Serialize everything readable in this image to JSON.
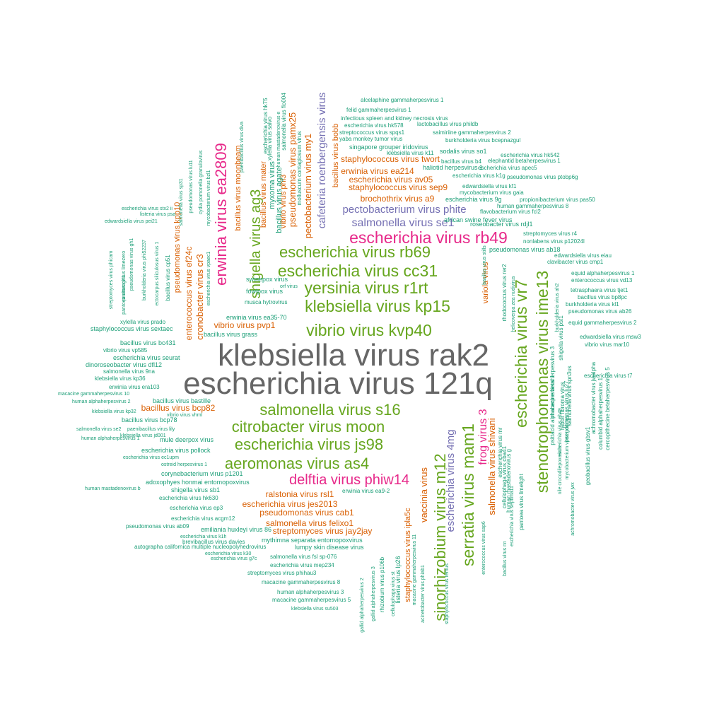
{
  "chart_data": {
    "type": "wordcloud",
    "colors": {
      "gray": "#666666",
      "magenta": "#e7298a",
      "green": "#66a61e",
      "orange": "#d95f02",
      "purple": "#7570b3",
      "teal": "#1b9e77"
    },
    "words": [
      {
        "text": "klebsiella virus rak2",
        "color": "gray"
      },
      {
        "text": "escherichia virus 121q",
        "color": "gray"
      },
      {
        "text": "escherichia virus rb49",
        "color": "magenta"
      },
      {
        "text": "erwinia virus ea2809",
        "color": "magenta"
      },
      {
        "text": "delftia virus phiw14",
        "color": "magenta"
      },
      {
        "text": "frog virus 3",
        "color": "magenta"
      },
      {
        "text": "escherichia virus rb69",
        "color": "green"
      },
      {
        "text": "escherichia virus cc31",
        "color": "green"
      },
      {
        "text": "yersinia virus r1rt",
        "color": "green"
      },
      {
        "text": "klebsiella virus kp15",
        "color": "green"
      },
      {
        "text": "vibrio virus kvp40",
        "color": "green"
      },
      {
        "text": "shigella virus ag3",
        "color": "green"
      },
      {
        "text": "salmonella virus s16",
        "color": "green"
      },
      {
        "text": "citrobacter virus moon",
        "color": "green"
      },
      {
        "text": "escherichia virus js98",
        "color": "green"
      },
      {
        "text": "aeromonas virus as4",
        "color": "green"
      },
      {
        "text": "escherichia virus vr7",
        "color": "green"
      },
      {
        "text": "stenotrophomonas virus ime13",
        "color": "green"
      },
      {
        "text": "serratia virus mam1",
        "color": "green"
      },
      {
        "text": "sinorhizobium virus m12",
        "color": "green"
      },
      {
        "text": "salmonella virus se1",
        "color": "purple"
      },
      {
        "text": "pectobacterium virus phite",
        "color": "purple"
      },
      {
        "text": "cafeteria roenbergensis virus",
        "color": "purple"
      },
      {
        "text": "escherichia virus 4mg",
        "color": "purple"
      },
      {
        "text": "brochothrix virus a9",
        "color": "orange"
      },
      {
        "text": "staphylococcus virus sep9",
        "color": "orange"
      },
      {
        "text": "escherichia virus av05",
        "color": "orange"
      },
      {
        "text": "erwinia virus ea214",
        "color": "orange"
      },
      {
        "text": "staphylococcus virus twort",
        "color": "orange"
      },
      {
        "text": "pectobacterium virus my1",
        "color": "orange"
      },
      {
        "text": "pseudomonas virus pamx25",
        "color": "orange"
      },
      {
        "text": "cronobacter virus cr3",
        "color": "orange"
      },
      {
        "text": "enterococcus virus ef24c",
        "color": "orange"
      },
      {
        "text": "vibrio virus pvp1",
        "color": "orange"
      },
      {
        "text": "bacillus virus bcp82",
        "color": "orange"
      },
      {
        "text": "ralstonia virus rsl1",
        "color": "orange"
      },
      {
        "text": "escherichia virus jes2013",
        "color": "orange"
      },
      {
        "text": "pseudomonas virus cab1",
        "color": "orange"
      },
      {
        "text": "salmonella virus felixo1",
        "color": "orange"
      },
      {
        "text": "streptomyces virus jay2jay",
        "color": "orange"
      },
      {
        "text": "vaccinia virus",
        "color": "orange"
      },
      {
        "text": "salmonella virus shivani",
        "color": "orange"
      },
      {
        "text": "variola virus",
        "color": "orange"
      },
      {
        "text": "pseudomonas virus kpp10",
        "color": "orange"
      },
      {
        "text": "bacillus virus moonbeam",
        "color": "orange"
      },
      {
        "text": "bacillus virus mater",
        "color": "orange"
      },
      {
        "text": "vibrio virus phi3",
        "color": "orange"
      },
      {
        "text": "staphylococcus virus ipla5c",
        "color": "orange"
      },
      {
        "text": "bacillus virus bobb",
        "color": "orange"
      },
      {
        "text": "alcelaphine gammaherpesvirus 1",
        "color": "teal"
      },
      {
        "text": "felid gammaherpesvirus 1",
        "color": "teal"
      },
      {
        "text": "infectious spleen and kidney necrosis virus",
        "color": "teal"
      },
      {
        "text": "escherichia virus hk578",
        "color": "teal"
      },
      {
        "text": "lactobacillus virus phildb",
        "color": "teal"
      },
      {
        "text": "streptococcus virus spqs1",
        "color": "teal"
      },
      {
        "text": "saimiriine gammaherpesvirus 2",
        "color": "teal"
      },
      {
        "text": "yaba monkey tumor virus",
        "color": "teal"
      },
      {
        "text": "burkholderia virus bcepnazgul",
        "color": "teal"
      },
      {
        "text": "singapore grouper iridovirus",
        "color": "teal"
      },
      {
        "text": "sodalis virus so1",
        "color": "teal"
      },
      {
        "text": "escherichia virus hk542",
        "color": "teal"
      },
      {
        "text": "klebsiella virus k11",
        "color": "teal"
      },
      {
        "text": "bacillus virus b4",
        "color": "teal"
      },
      {
        "text": "elephantid betaherpesvirus 1",
        "color": "teal"
      },
      {
        "text": "escherichia virus apec5",
        "color": "teal"
      },
      {
        "text": "haliotid herpesvirus 1",
        "color": "teal"
      },
      {
        "text": "escherichia virus k1g",
        "color": "teal"
      },
      {
        "text": "pseudomonas virus ptobp6g",
        "color": "teal"
      },
      {
        "text": "mycobacterium virus gaia",
        "color": "teal"
      },
      {
        "text": "edwardsiella virus kf1",
        "color": "teal"
      },
      {
        "text": "escherichia virus 9g",
        "color": "teal"
      },
      {
        "text": "propionibacterium virus pas50",
        "color": "teal"
      },
      {
        "text": "human gammaherpesvirus 8",
        "color": "teal"
      },
      {
        "text": "flavobacterium virus fcl2",
        "color": "teal"
      },
      {
        "text": "african swine fever virus",
        "color": "teal"
      },
      {
        "text": "roseobacter virus rdjl1",
        "color": "teal"
      },
      {
        "text": "streptomyces virus r4",
        "color": "teal"
      },
      {
        "text": "nonlabens virus p12024l",
        "color": "teal"
      },
      {
        "text": "pseudomonas virus ab18",
        "color": "teal"
      },
      {
        "text": "edwardsiella virus eiau",
        "color": "teal"
      },
      {
        "text": "clavibacter virus cmp1",
        "color": "teal"
      },
      {
        "text": "equid alphaherpesvirus 1",
        "color": "teal"
      },
      {
        "text": "enterococcus virus vd13",
        "color": "teal"
      },
      {
        "text": "tetrasphaera virus tjet1",
        "color": "teal"
      },
      {
        "text": "bacillus virus bp8pc",
        "color": "teal"
      },
      {
        "text": "burkholderia virus kl1",
        "color": "teal"
      },
      {
        "text": "pseudomonas virus ab26",
        "color": "teal"
      },
      {
        "text": "equid gammaherpesvirus 2",
        "color": "teal"
      },
      {
        "text": "edwardsiella virus msw3",
        "color": "teal"
      },
      {
        "text": "vibrio virus mar10",
        "color": "teal"
      },
      {
        "text": "escherichia virus t7",
        "color": "teal"
      },
      {
        "text": "escherichia virus stx2 ii",
        "color": "teal"
      },
      {
        "text": "listeria virus psa",
        "color": "teal"
      },
      {
        "text": "edwardsiella virus pei21",
        "color": "teal"
      },
      {
        "text": "pseudomonas virus gh1",
        "color": "teal"
      },
      {
        "text": "burkholderia virus phi52237",
        "color": "teal"
      },
      {
        "text": "ectocarpus siliculosus virus 1",
        "color": "teal"
      },
      {
        "text": "bacillus virus cp51",
        "color": "teal"
      },
      {
        "text": "xylella virus prado",
        "color": "teal"
      },
      {
        "text": "staphylococcus virus sextaec",
        "color": "teal"
      },
      {
        "text": "bacillus virus bc431",
        "color": "teal"
      },
      {
        "text": "vibrio virus vp585",
        "color": "teal"
      },
      {
        "text": "escherichia virus seurat",
        "color": "teal"
      },
      {
        "text": "dinoroseobacter virus dfl12",
        "color": "teal"
      },
      {
        "text": "salmonella virus 9na",
        "color": "teal"
      },
      {
        "text": "klebsiella virus kp36",
        "color": "teal"
      },
      {
        "text": "erwinia virus era103",
        "color": "teal"
      },
      {
        "text": "macacine gammaherpesvirus 10",
        "color": "teal"
      },
      {
        "text": "human alphaherpesvirus 2",
        "color": "teal"
      },
      {
        "text": "klebsiella virus kp32",
        "color": "teal"
      },
      {
        "text": "bacillus virus bastille",
        "color": "teal"
      },
      {
        "text": "bacillus virus bcp78",
        "color": "teal"
      },
      {
        "text": "salmonella virus se2",
        "color": "teal"
      },
      {
        "text": "paenibacillus virus lily",
        "color": "teal"
      },
      {
        "text": "human alphaherpesvirus 1",
        "color": "teal"
      },
      {
        "text": "mule deerpox virus",
        "color": "teal"
      },
      {
        "text": "escherichia virus pollock",
        "color": "teal"
      },
      {
        "text": "escherichia virus ec1upm",
        "color": "teal"
      },
      {
        "text": "ostreid herpesvirus 1",
        "color": "teal"
      },
      {
        "text": "corynebacterium virus p1201",
        "color": "teal"
      },
      {
        "text": "adoxophyes honmai entomopoxvirus",
        "color": "teal"
      },
      {
        "text": "human mastadenovirus b",
        "color": "teal"
      },
      {
        "text": "shigella virus sb1",
        "color": "teal"
      },
      {
        "text": "escherichia virus hk630",
        "color": "teal"
      },
      {
        "text": "escherichia virus ep3",
        "color": "teal"
      },
      {
        "text": "escherichia virus acgm12",
        "color": "teal"
      },
      {
        "text": "pseudomonas virus ab09",
        "color": "teal"
      },
      {
        "text": "emiliania huxleyi virus 86",
        "color": "teal"
      },
      {
        "text": "escherichia virus k1h",
        "color": "teal"
      },
      {
        "text": "brevibacillus virus davies",
        "color": "teal"
      },
      {
        "text": "autographa californica multiple nucleopolyhedrovirus",
        "color": "teal"
      },
      {
        "text": "escherichia virus k30",
        "color": "teal"
      },
      {
        "text": "escherichia virus g7c",
        "color": "teal"
      },
      {
        "text": "mythimna separata entomopoxvirus",
        "color": "teal"
      },
      {
        "text": "lumpy skin disease virus",
        "color": "teal"
      },
      {
        "text": "salmonella virus fsl sp-076",
        "color": "teal"
      },
      {
        "text": "escherichia virus mep234",
        "color": "teal"
      },
      {
        "text": "streptomyces virus phihau3",
        "color": "teal"
      },
      {
        "text": "macacine gammaherpesvirus 8",
        "color": "teal"
      },
      {
        "text": "human alphaherpesvirus 3",
        "color": "teal"
      },
      {
        "text": "macacine gammaherpesvirus 5",
        "color": "teal"
      },
      {
        "text": "klebsiella virus su503",
        "color": "teal"
      },
      {
        "text": "erwinia virus ea9-2",
        "color": "teal"
      },
      {
        "text": "swinepox virus",
        "color": "teal"
      },
      {
        "text": "orf virus",
        "color": "teal"
      },
      {
        "text": "fowlpox virus",
        "color": "teal"
      },
      {
        "text": "musca hytrovirus",
        "color": "teal"
      },
      {
        "text": "erwinia virus ea35-70",
        "color": "teal"
      },
      {
        "text": "bacillus virus grass",
        "color": "teal"
      },
      {
        "text": "vibrio virus vhml",
        "color": "teal"
      },
      {
        "text": "klebsiella virus jd001",
        "color": "teal"
      },
      {
        "text": "streptomyces virus phicam",
        "color": "teal"
      },
      {
        "text": "pantoea virus limezero",
        "color": "teal"
      },
      {
        "text": "pantoea virus gh1",
        "color": "teal"
      },
      {
        "text": "salmonella virus sp31",
        "color": "teal"
      },
      {
        "text": "pseudomonas virus lu11",
        "color": "teal"
      },
      {
        "text": "cydia pomonella granulovirus",
        "color": "teal"
      },
      {
        "text": "mycobacterium virus bzl1",
        "color": "teal"
      },
      {
        "text": "escherichia virus vpaec1",
        "color": "teal"
      },
      {
        "text": "helicoverpa zea nudivirus",
        "color": "teal"
      },
      {
        "text": "myxoma virus",
        "color": "teal"
      },
      {
        "text": "bacillus virus agate",
        "color": "teal"
      },
      {
        "text": "escherichia virus hk75",
        "color": "teal"
      },
      {
        "text": "xylella virus salvo",
        "color": "teal"
      },
      {
        "text": "salmonella virus flo004",
        "color": "teal"
      },
      {
        "text": "molluscum contagiosum virus",
        "color": "teal"
      },
      {
        "text": "paenibacillus virus diva",
        "color": "teal"
      },
      {
        "text": "human mastadenovirus e",
        "color": "teal"
      },
      {
        "text": "rhodococcus virus rer2",
        "color": "teal"
      },
      {
        "text": "bacillus virus stills",
        "color": "teal"
      },
      {
        "text": "burkholderia virus ah2",
        "color": "teal"
      },
      {
        "text": "shigella virus pst1",
        "color": "teal"
      },
      {
        "text": "macacine betaherpesvirus 3",
        "color": "teal"
      },
      {
        "text": "psittacid alphaherpesvirus 1",
        "color": "teal"
      },
      {
        "text": "rabbit fibroma virus",
        "color": "teal"
      },
      {
        "text": "salmonella virus spn3us",
        "color": "teal"
      },
      {
        "text": "achromobacter virus jwalpha",
        "color": "teal"
      },
      {
        "text": "columbid alphaherpesvirus 1",
        "color": "teal"
      },
      {
        "text": "cercopithecine betaherpesvirus 5",
        "color": "teal"
      },
      {
        "text": "geobacillus virus gbsv1",
        "color": "teal"
      },
      {
        "text": "pseudomonas virus lu27",
        "color": "teal"
      },
      {
        "text": "achromobacter virus jwx",
        "color": "teal"
      },
      {
        "text": "escherichia virus eb49",
        "color": "teal"
      },
      {
        "text": "mycobacterium virus godines",
        "color": "teal"
      },
      {
        "text": "nile crocodilepox virus",
        "color": "teal"
      },
      {
        "text": "human mastadenovirus g",
        "color": "teal"
      },
      {
        "text": "escherichia virus septima11",
        "color": "teal"
      },
      {
        "text": "pantoea virus limelight",
        "color": "teal"
      },
      {
        "text": "cellulophaga virus cba41",
        "color": "teal"
      },
      {
        "text": "escherichia virus mr",
        "color": "teal"
      },
      {
        "text": "bacillus virus nn",
        "color": "teal"
      },
      {
        "text": "enterococcus virus sap6",
        "color": "teal"
      },
      {
        "text": "staphylococcus virus remus",
        "color": "teal"
      },
      {
        "text": "acinetobacter virus phiab1",
        "color": "teal"
      },
      {
        "text": "macacine gammaherpesvirus 11",
        "color": "teal"
      },
      {
        "text": "cellulophaga virus st",
        "color": "teal"
      },
      {
        "text": "gallid alphaherpesvirus 3",
        "color": "teal"
      },
      {
        "text": "gallid alphaherpesvirus 2",
        "color": "teal"
      },
      {
        "text": "rhizobium virus p106b",
        "color": "teal"
      },
      {
        "text": "listeria virus lp26",
        "color": "teal"
      },
      {
        "text": "human betaherpesvirus 5",
        "color": "teal"
      }
    ]
  }
}
